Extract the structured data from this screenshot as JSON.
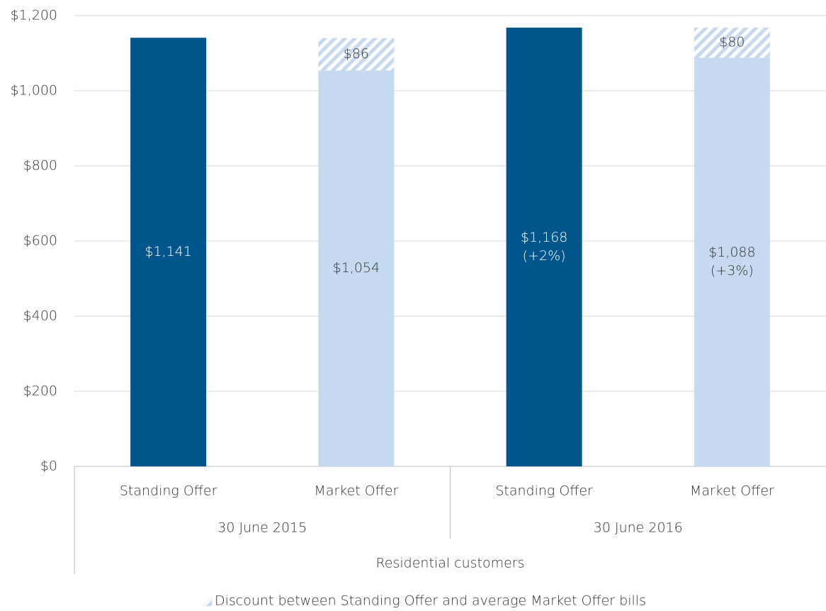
{
  "chart_data": {
    "type": "stacked-bar",
    "categories": [
      "Standing Offer",
      "Market Offer",
      "Standing Offer",
      "Market Offer"
    ],
    "groups": [
      "30 June 2015",
      "30 June 2016"
    ],
    "x_label": "Residential customers",
    "series": [
      {
        "colors": [
          "#00558c",
          "#c5d9f0",
          "#00558c",
          "#c5d9f0"
        ],
        "values": [
          1141,
          1054,
          1168,
          1088
        ],
        "value_labels": [
          "$1,141",
          "$1,054",
          "$1,168",
          "$1,088"
        ],
        "change_labels": [
          null,
          null,
          "(+2%)",
          "(+3%)"
        ]
      },
      {
        "name": "Discount between Standing Offer and average Market Offer bills",
        "color": "#c5d9f0",
        "pattern": "hatch",
        "values": [
          null,
          86,
          null,
          80
        ],
        "value_labels": [
          null,
          "$86",
          null,
          "$80"
        ]
      }
    ],
    "ylim": [
      0,
      1200
    ],
    "yticks": [
      {
        "value": 0,
        "label": "$0"
      },
      {
        "value": 200,
        "label": "$200"
      },
      {
        "value": 400,
        "label": "$400"
      },
      {
        "value": 600,
        "label": "$600"
      },
      {
        "value": 800,
        "label": "$800"
      },
      {
        "value": 1000,
        "label": "$1,000"
      },
      {
        "value": 1200,
        "label": "$1,200"
      }
    ],
    "grid": true
  }
}
